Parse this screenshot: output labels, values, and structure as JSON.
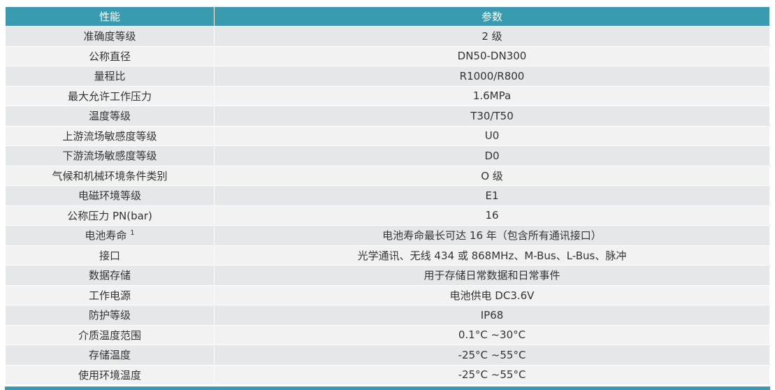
{
  "header": {
    "col1": "性能",
    "col2": "参数"
  },
  "colors": {
    "header": "#3a9bb0",
    "row_odd": "#e6e7e8",
    "row_even": "#f2f2f3"
  },
  "rows": [
    {
      "name": "准确度等级",
      "value": "2 级"
    },
    {
      "name": "公称直径",
      "value": "DN50-DN300"
    },
    {
      "name": "量程比",
      "value": "R1000/R800"
    },
    {
      "name": "最大允许工作压力",
      "value": "1.6MPa"
    },
    {
      "name": "温度等级",
      "value": "T30/T50"
    },
    {
      "name": "上游流场敏感度等级",
      "value": "U0"
    },
    {
      "name": "下游流场敏感度等级",
      "value": "D0"
    },
    {
      "name": "气候和机械环境条件类别",
      "value": "O 级"
    },
    {
      "name": "电磁环境等级",
      "value": "E1"
    },
    {
      "name": "公称压力 PN(bar)",
      "value": "16"
    },
    {
      "name": "电池寿命",
      "sup": "1",
      "value": "电池寿命最长可达 16 年（包含所有通讯接口）"
    },
    {
      "name": "接口",
      "value": "光学通讯、无线 434 或 868MHz、M-Bus、L-Bus、脉冲"
    },
    {
      "name": "数据存储",
      "value": "用于存储日常数据和日常事件"
    },
    {
      "name": "工作电源",
      "value": "电池供电 DC3.6V"
    },
    {
      "name": "防护等级",
      "value": "IP68"
    },
    {
      "name": "介质温度范围",
      "value": "0.1°C ~30°C"
    },
    {
      "name": "存储温度",
      "value": "-25°C ~55°C"
    },
    {
      "name": "使用环境温度",
      "value": "-25°C ~55°C"
    }
  ]
}
